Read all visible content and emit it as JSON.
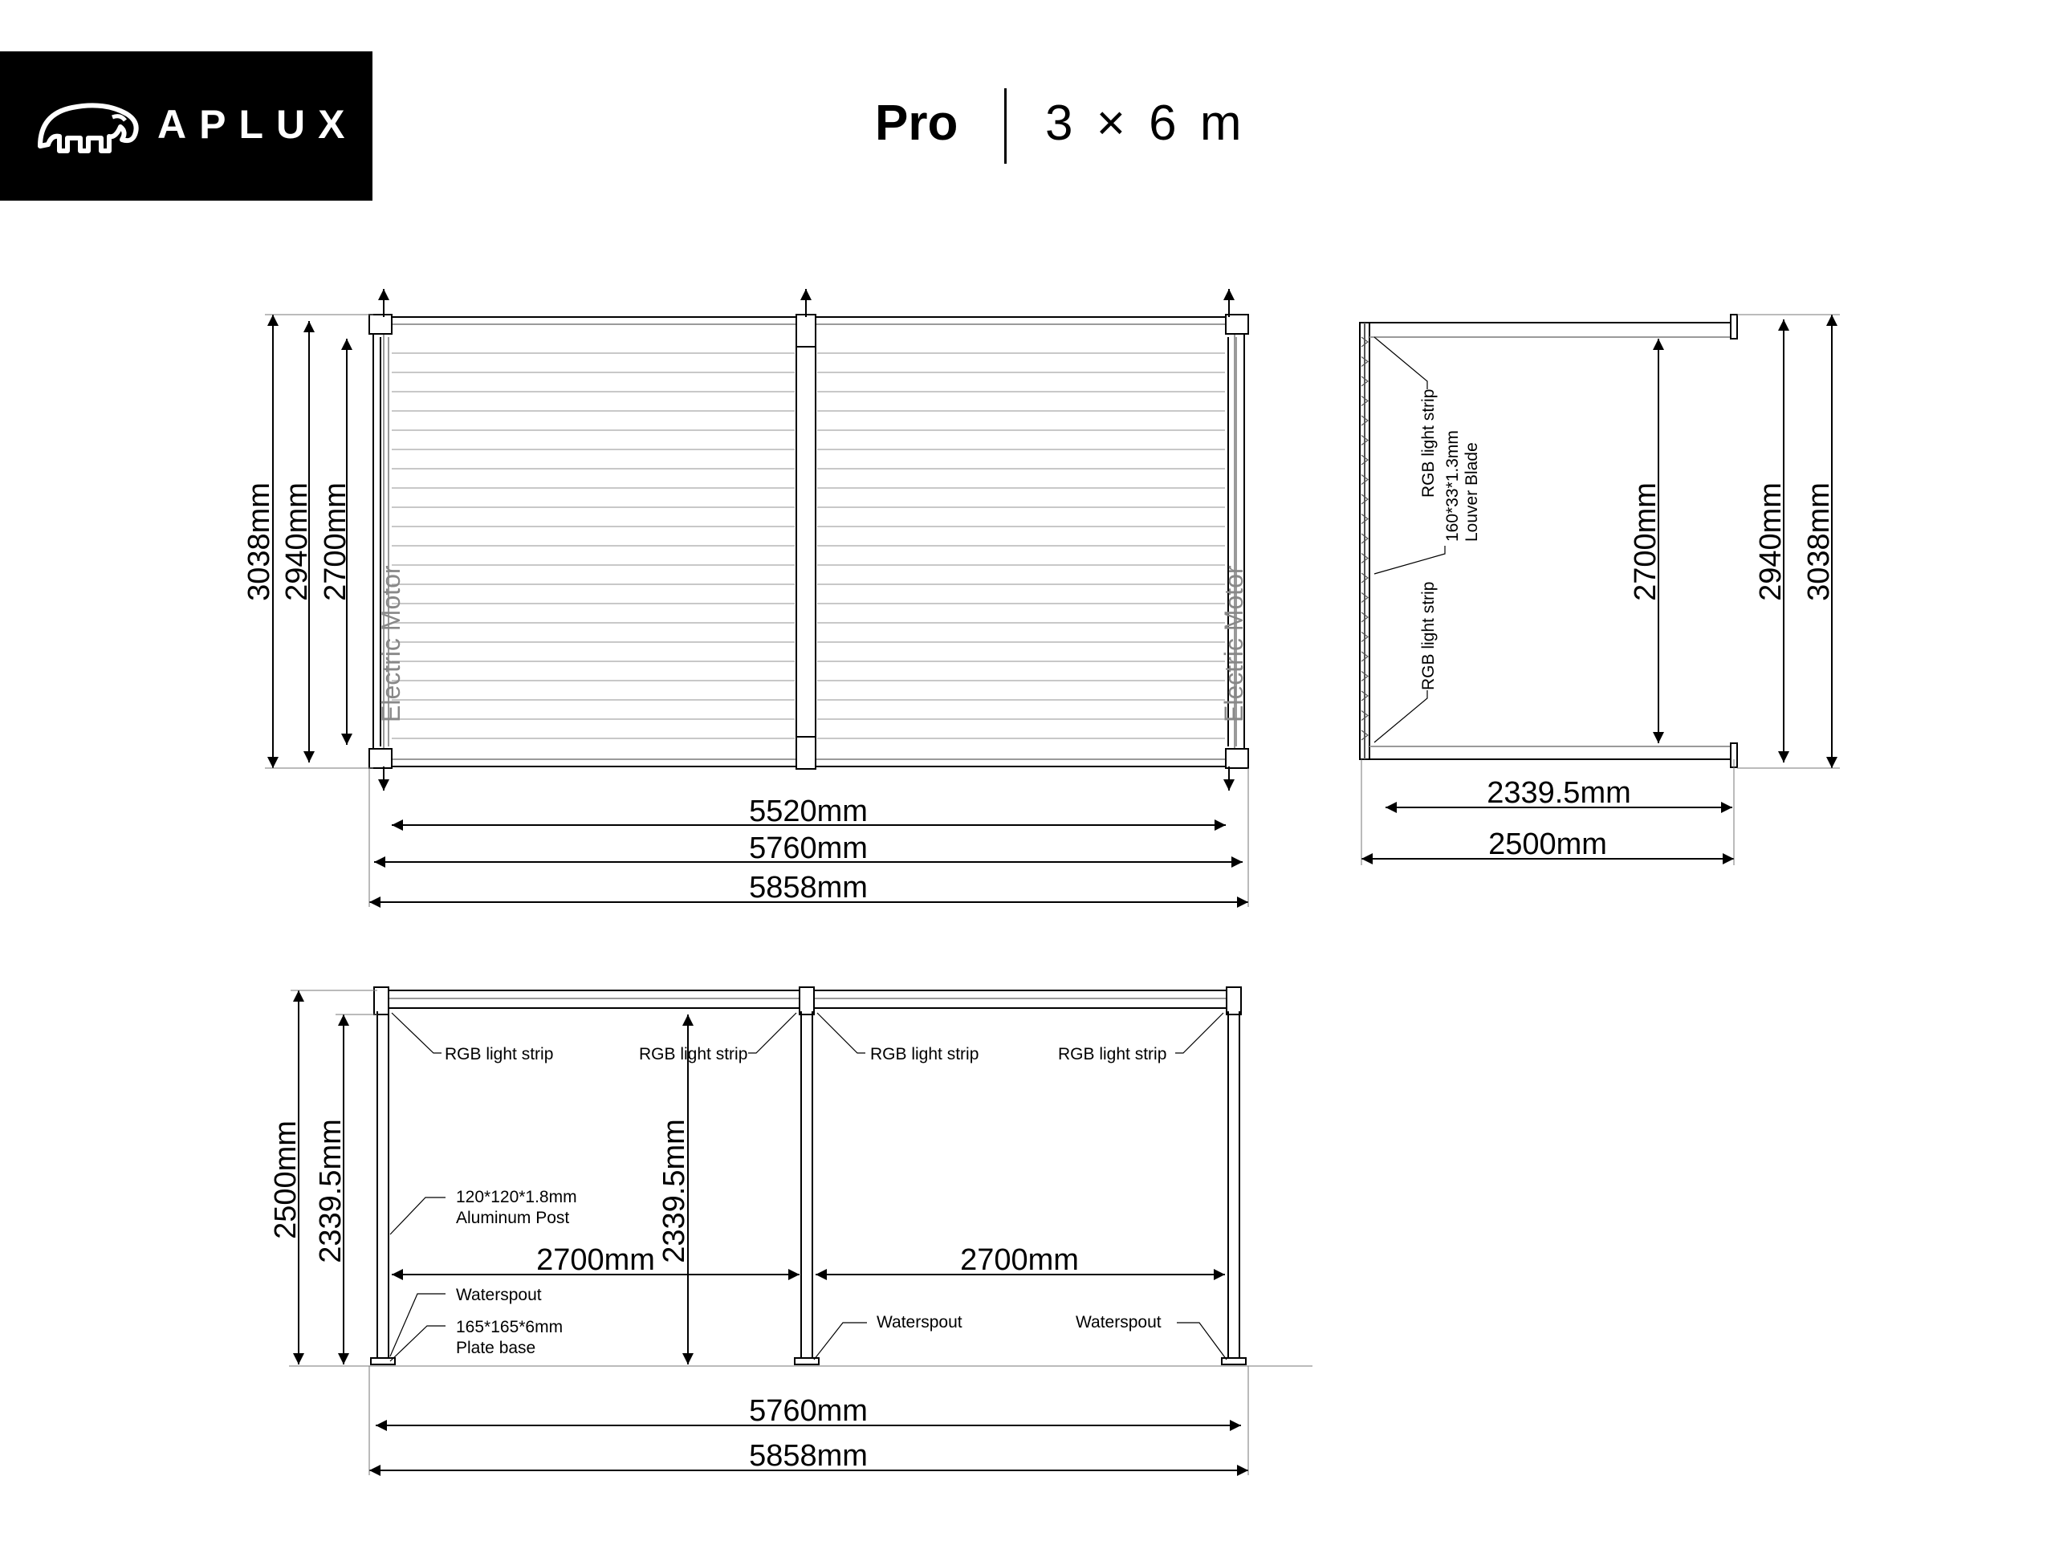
{
  "brand": {
    "name": "APLUX",
    "logo_icon": "mammoth-icon"
  },
  "header": {
    "model": "Pro",
    "size": "3 × 6 m"
  },
  "top_view": {
    "motor_left": "Electric Motor",
    "motor_right": "Electric Motor",
    "vertical_dims": [
      "3038mm",
      "2940mm",
      "2700mm"
    ],
    "horizontal_dims": [
      "5520mm",
      "5760mm",
      "5858mm"
    ]
  },
  "side_view": {
    "labels": {
      "rgb_top": "RGB light strip",
      "louver_blade_1": "160*33*1.3mm",
      "louver_blade_2": "Louver Blade",
      "rgb_bottom": "RGB light strip"
    },
    "vertical_inner": "2700mm",
    "vertical_dims": [
      "2940mm",
      "3038mm"
    ],
    "horizontal_dims": [
      "2339.5mm",
      "2500mm"
    ]
  },
  "front_view": {
    "rgb_labels": [
      "RGB light strip",
      "RGB light strip",
      "RGB light strip",
      "RGB light strip"
    ],
    "post_1": "120*120*1.8mm",
    "post_2": "Aluminum Post",
    "waterspout_left": "Waterspout",
    "waterspout_mid": "Waterspout",
    "waterspout_right": "Waterspout",
    "plate_1": "165*165*6mm",
    "plate_2": "Plate base",
    "vertical_dims": [
      "2500mm",
      "2339.5mm",
      "2339.5mm"
    ],
    "bay_dims": [
      "2700mm",
      "2700mm"
    ],
    "horizontal_dims": [
      "5760mm",
      "5858mm"
    ]
  },
  "colors": {
    "line": "#000000",
    "light_line": "#9a9a9a",
    "motor_text": "#888888"
  }
}
